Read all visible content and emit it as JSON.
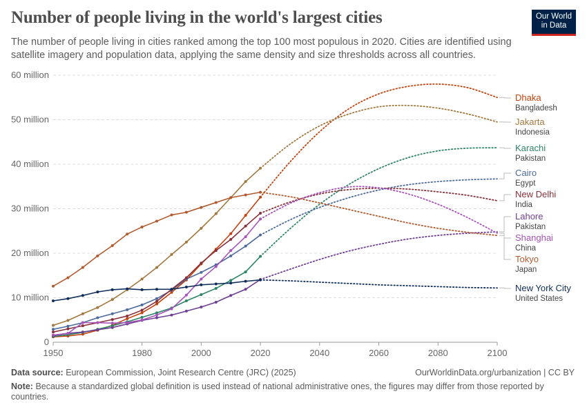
{
  "title": "Number of people living in the world's largest cities",
  "subtitle": "The number of people living in cities ranked among the top 100 most populous in 2020. Cities are identified using satellite imagery and population data, applying the same density and size thresholds across all countries.",
  "logo": {
    "line1": "Our World",
    "line2": "in Data",
    "bg": "#002147",
    "accent": "#ce261e"
  },
  "footer": {
    "source_label": "Data source:",
    "source": "European Commission, Joint Research Centre (JRC) (2025)",
    "url": "OurWorldinData.org/urbanization | CC BY",
    "note_label": "Note:",
    "note": "Because a standardized global definition is used instead of national administrative ones, the figures may differ from those reported by countries."
  },
  "chart_data": {
    "type": "line",
    "xlim": [
      1950,
      2100
    ],
    "ylim": [
      0,
      60000000
    ],
    "y_ticks": [
      {
        "v": 0,
        "label": "0"
      },
      {
        "v": 10000000,
        "label": "10 million"
      },
      {
        "v": 20000000,
        "label": "20 million"
      },
      {
        "v": 30000000,
        "label": "30 million"
      },
      {
        "v": 40000000,
        "label": "40 million"
      },
      {
        "v": 50000000,
        "label": "50 million"
      },
      {
        "v": 60000000,
        "label": "60 million"
      }
    ],
    "x_ticks": [
      "1950",
      "1980",
      "2000",
      "2020",
      "2040",
      "2060",
      "2080",
      "2100"
    ],
    "grid": "horizontal dashed",
    "legend": "right, inline labels",
    "historical_years": [
      1950,
      1955,
      1960,
      1965,
      1970,
      1975,
      1980,
      1985,
      1990,
      1995,
      2000,
      2005,
      2010,
      2015,
      2020
    ],
    "projection_years": [
      2020,
      2030,
      2040,
      2050,
      2060,
      2070,
      2080,
      2090,
      2100
    ],
    "units": "million people",
    "series": [
      {
        "name": "Dhaka",
        "country": "Bangladesh",
        "color": "#c2410c",
        "values": [
          1.2,
          1.4,
          1.8,
          2.7,
          3.8,
          5.3,
          6.6,
          8.6,
          11.2,
          14.0,
          17.6,
          20.9,
          24.4,
          28.5,
          32.6
        ],
        "projection": [
          32.6,
          40.5,
          47.3,
          52.5,
          55.8,
          57.5,
          58.0,
          57.2,
          55.0
        ]
      },
      {
        "name": "Jakarta",
        "country": "Indonesia",
        "color": "#a2773d",
        "values": [
          3.8,
          4.9,
          6.4,
          7.8,
          9.6,
          11.8,
          14.2,
          16.8,
          19.7,
          22.5,
          25.6,
          28.9,
          32.5,
          36.1,
          39.1
        ],
        "projection": [
          39.1,
          44.5,
          48.6,
          51.3,
          52.9,
          53.2,
          52.6,
          51.3,
          49.5
        ]
      },
      {
        "name": "Karachi",
        "country": "Pakistan",
        "color": "#2c8465",
        "values": [
          1.3,
          1.7,
          2.2,
          2.9,
          3.7,
          4.6,
          5.6,
          6.6,
          7.7,
          9.3,
          10.7,
          12.1,
          13.9,
          15.8,
          19.3
        ],
        "projection": [
          19.3,
          25.5,
          31.0,
          35.5,
          39.0,
          41.5,
          43.0,
          43.6,
          43.7
        ]
      },
      {
        "name": "Cairo",
        "country": "Egypt",
        "color": "#4c6a9c",
        "values": [
          2.9,
          3.6,
          4.4,
          5.5,
          6.4,
          7.3,
          8.4,
          9.8,
          11.7,
          14.2,
          15.7,
          17.4,
          19.4,
          21.6,
          24.1
        ],
        "projection": [
          24.1,
          27.5,
          30.3,
          32.5,
          34.2,
          35.4,
          36.1,
          36.5,
          36.7
        ]
      },
      {
        "name": "New Delhi",
        "country": "India",
        "color": "#883039",
        "values": [
          2.3,
          3.0,
          3.7,
          4.4,
          5.1,
          5.9,
          7.2,
          9.2,
          11.9,
          14.5,
          17.8,
          20.6,
          23.1,
          26.1,
          29.0
        ],
        "projection": [
          29.0,
          31.5,
          33.3,
          34.3,
          34.6,
          34.4,
          33.8,
          33.0,
          31.8
        ]
      },
      {
        "name": "Lahore",
        "country": "Pakistan",
        "color": "#6d3e91",
        "values": [
          1.5,
          2.0,
          2.3,
          2.8,
          3.3,
          4.1,
          4.9,
          5.5,
          6.1,
          7.0,
          7.9,
          9.0,
          10.5,
          11.9,
          14.1
        ],
        "projection": [
          14.1,
          16.4,
          18.6,
          20.5,
          22.0,
          23.2,
          24.0,
          24.5,
          24.8
        ]
      },
      {
        "name": "Shanghai",
        "country": "China",
        "color": "#a652ba",
        "values": [
          1.6,
          2.0,
          4.4,
          4.4,
          4.3,
          4.4,
          5.0,
          6.1,
          7.5,
          10.6,
          14.2,
          17.0,
          20.6,
          23.7,
          27.7
        ],
        "projection": [
          27.7,
          31.2,
          33.6,
          34.9,
          34.7,
          33.3,
          31.0,
          28.0,
          24.5
        ]
      },
      {
        "name": "Tokyo",
        "country": "Japan",
        "color": "#b2592d",
        "values": [
          12.6,
          14.5,
          16.8,
          19.4,
          21.7,
          24.3,
          25.9,
          27.2,
          28.6,
          29.2,
          30.3,
          31.4,
          32.5,
          33.1,
          33.7
        ],
        "projection": [
          33.7,
          32.7,
          31.3,
          29.8,
          28.3,
          26.8,
          25.6,
          24.7,
          24.0
        ]
      },
      {
        "name": "New York City",
        "country": "United States",
        "color": "#0f2d5a",
        "values": [
          9.3,
          9.8,
          10.5,
          11.3,
          11.8,
          12.0,
          11.8,
          11.9,
          11.9,
          12.4,
          12.9,
          13.1,
          13.3,
          13.7,
          14.0
        ],
        "projection": [
          14.0,
          13.8,
          13.5,
          13.2,
          12.9,
          12.7,
          12.5,
          12.3,
          12.2
        ]
      }
    ]
  }
}
